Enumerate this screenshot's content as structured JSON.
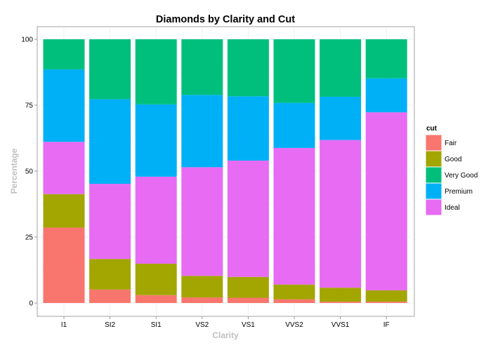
{
  "chart_data": {
    "type": "bar",
    "stacked": true,
    "title": "Diamonds by Clarity and Cut",
    "xlabel": "Clarity",
    "ylabel": "Percentage",
    "ylim": [
      0,
      100
    ],
    "yticks": [
      0,
      25,
      50,
      75,
      100
    ],
    "grid": true,
    "legend_position": "right",
    "legend_title": "cut",
    "categories": [
      "I1",
      "SI2",
      "SI1",
      "VS2",
      "VS1",
      "VVS2",
      "VVS1",
      "IF"
    ],
    "series": [
      {
        "name": "Fair",
        "color": "#F8766D",
        "values": [
          28.6,
          5.1,
          3.0,
          2.1,
          2.0,
          1.4,
          0.5,
          0.5
        ]
      },
      {
        "name": "Good",
        "color": "#A3A500",
        "values": [
          12.7,
          11.6,
          11.9,
          8.2,
          7.9,
          5.6,
          5.3,
          4.3
        ]
      },
      {
        "name": "Ideal",
        "color": "#E76BF3",
        "values": [
          19.8,
          28.5,
          33.0,
          41.2,
          44.1,
          51.8,
          56.0,
          67.5
        ]
      },
      {
        "name": "Premium",
        "color": "#00B0F6",
        "values": [
          27.5,
          32.1,
          27.4,
          27.4,
          24.4,
          17.1,
          16.4,
          12.9
        ]
      },
      {
        "name": "Very Good",
        "color": "#00BF7D",
        "values": [
          11.4,
          22.7,
          24.7,
          21.1,
          21.6,
          24.1,
          21.8,
          14.8
        ]
      }
    ],
    "legend_order": [
      "Fair",
      "Good",
      "Very Good",
      "Premium",
      "Ideal"
    ]
  }
}
